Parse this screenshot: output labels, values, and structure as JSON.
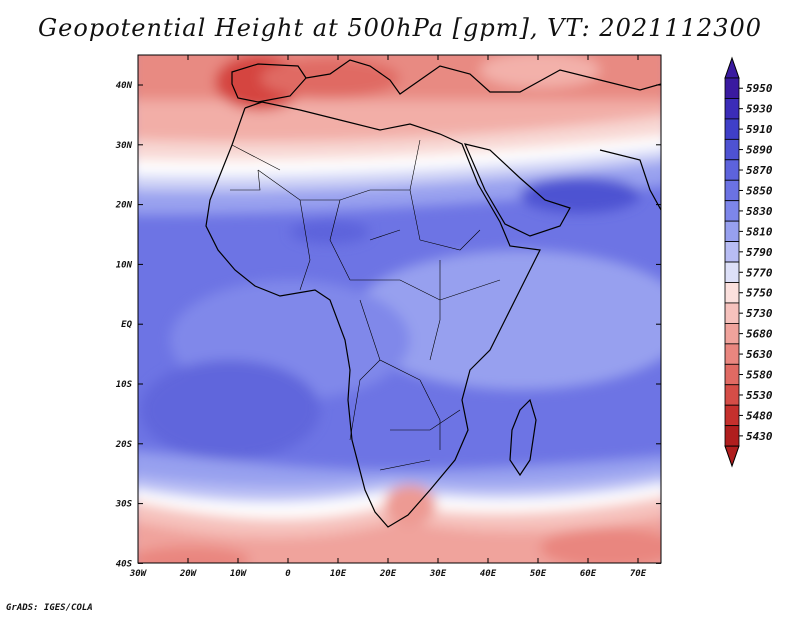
{
  "title": "Geopotential Height at 500hPa [gpm], VT: 2021112300",
  "credit": "GrADS: IGES/COLA",
  "colorbar": {
    "labels": [
      "5950",
      "5930",
      "5910",
      "5890",
      "5870",
      "5850",
      "5830",
      "5810",
      "5790",
      "5770",
      "5750",
      "5730",
      "5680",
      "5630",
      "5580",
      "5530",
      "5480",
      "5430"
    ],
    "colors": [
      "#3a1aa0",
      "#3b2cb8",
      "#3f3fc8",
      "#4e52d2",
      "#5d63dc",
      "#6b72e3",
      "#7d86ea",
      "#97a0ef",
      "#b8bdf4",
      "#dde0f8",
      "#fbe0dd",
      "#f6c2bd",
      "#f0a39c",
      "#e9867f",
      "#e06a63",
      "#d54d47",
      "#c5302d",
      "#b01e1e"
    ]
  },
  "map": {
    "lat_labels": [
      "40N",
      "30N",
      "20N",
      "10N",
      "EQ",
      "10S",
      "20S",
      "30S",
      "40S"
    ],
    "lon_labels": [
      "30W",
      "20W",
      "10W",
      "0",
      "10E",
      "20E",
      "30E",
      "40E",
      "50E",
      "60E",
      "70E"
    ]
  }
}
